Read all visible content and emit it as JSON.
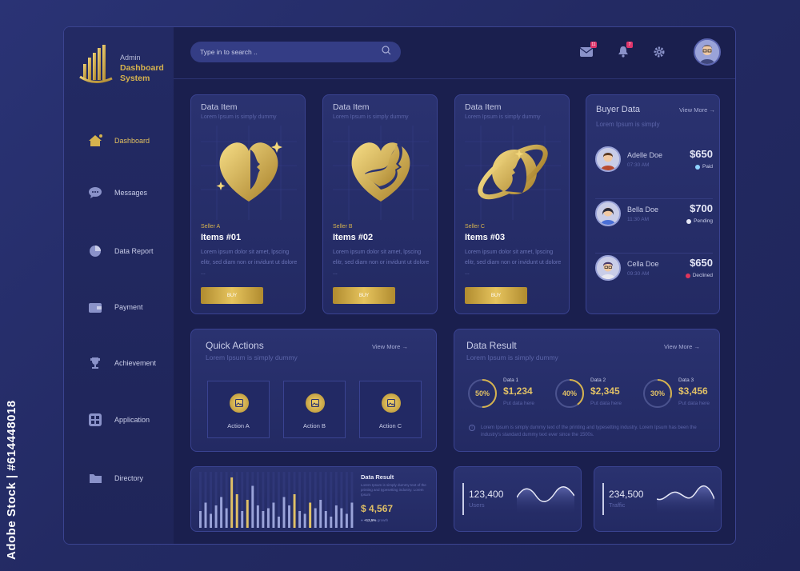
{
  "watermark": "Adobe Stock | #614448018",
  "logo": {
    "small": "Admin",
    "line1": "Dashboard",
    "line2": "System"
  },
  "nav": [
    {
      "label": "Dashboard",
      "icon": "home-icon",
      "active": true
    },
    {
      "label": "Messages",
      "icon": "chat-icon"
    },
    {
      "label": "Data Report",
      "icon": "pie-chart-icon"
    },
    {
      "label": "Payment",
      "icon": "wallet-icon"
    },
    {
      "label": "Achievement",
      "icon": "trophy-icon"
    },
    {
      "label": "Application",
      "icon": "grid-icon"
    },
    {
      "label": "Directory",
      "icon": "folder-icon"
    }
  ],
  "search": {
    "placeholder": "Type in to search .."
  },
  "header": {
    "mail_badge": "11",
    "bell_badge": "7"
  },
  "items": [
    {
      "title": "Data Item",
      "sub": "Lorem Ipsum is simply dummy",
      "seller": "Seller A",
      "name": "Items #01",
      "desc": "Lorem ipsum dolor sit amet, lpscing elitr, sed diam non or invidunt ut dolore ...",
      "button": "BUY"
    },
    {
      "title": "Data Item",
      "sub": "Lorem Ipsum is simply dummy",
      "seller": "Seller B",
      "name": "Items #02",
      "desc": "Lorem ipsum dolor sit amet, lpscing elitr, sed diam non or invidunt ut dolore ...",
      "button": "BUY"
    },
    {
      "title": "Data Item",
      "sub": "Lorem Ipsum is simply dummy",
      "seller": "Seller C",
      "name": "Items #03",
      "desc": "Lorem ipsum dolor sit amet, lpscing elitr, sed diam non or invidunt ut dolore ...",
      "button": "BUY"
    }
  ],
  "buyers": {
    "title": "Buyer Data",
    "view_more": "View More",
    "sub": "Lorem Ipsum is simply",
    "rows": [
      {
        "name": "Adelle Doe",
        "time": "07:30 AM",
        "amount": "$650",
        "status": "Paid",
        "status_color": "#8fd3ff"
      },
      {
        "name": "Bella Doe",
        "time": "11:30 AM",
        "amount": "$700",
        "status": "Pending",
        "status_color": "#e6e8f7"
      },
      {
        "name": "Cella Doe",
        "time": "09:30 AM",
        "amount": "$650",
        "status": "Declined",
        "status_color": "#e0355b"
      }
    ]
  },
  "quick_actions": {
    "title": "Quick Actions",
    "sub": "Lorem Ipsum is simply dummy",
    "view_more": "View More",
    "actions": [
      "Action A",
      "Action B",
      "Action C"
    ]
  },
  "data_result": {
    "title": "Data Result",
    "sub": "Lorem Ipsum is simply dummy",
    "view_more": "View More",
    "metrics": [
      {
        "pct": "50%",
        "fraction": 0.5,
        "label": "Data 1",
        "value": "$1,234",
        "put": "Put data here"
      },
      {
        "pct": "40%",
        "fraction": 0.4,
        "label": "Data 2",
        "value": "$2,345",
        "put": "Put data here"
      },
      {
        "pct": "30%",
        "fraction": 0.3,
        "label": "Data 3",
        "value": "$3,456",
        "put": "Put data here"
      }
    ],
    "note": "Lorem Ipsum is simply dummy text of the printing and typesetting industry. Lorem Ipsum has been the industry's standard dummy text ever since the 1500s."
  },
  "bottom_chart": {
    "title": "Data Result",
    "desc": "Lorem Ipsum is simply dummy text of the printing and typesetting industry. Lorem Ipsum",
    "value": "$ 4,567",
    "growth": "+12,5%",
    "growth_label": "growth"
  },
  "chart_data": {
    "type": "bar",
    "values": [
      30,
      45,
      25,
      40,
      55,
      35,
      90,
      60,
      30,
      50,
      75,
      40,
      30,
      35,
      45,
      20,
      55,
      40,
      60,
      30,
      25,
      45,
      35,
      50,
      30,
      20,
      40,
      35,
      25,
      45
    ],
    "highlight": [
      false,
      false,
      false,
      false,
      false,
      false,
      true,
      true,
      false,
      true,
      false,
      false,
      false,
      false,
      false,
      false,
      false,
      false,
      true,
      false,
      false,
      true,
      false,
      false,
      false,
      false,
      false,
      false,
      false,
      false
    ],
    "ylim": [
      0,
      100
    ]
  },
  "stats": [
    {
      "value": "123,400",
      "label": "Users"
    },
    {
      "value": "234,500",
      "label": "Traffic"
    }
  ]
}
